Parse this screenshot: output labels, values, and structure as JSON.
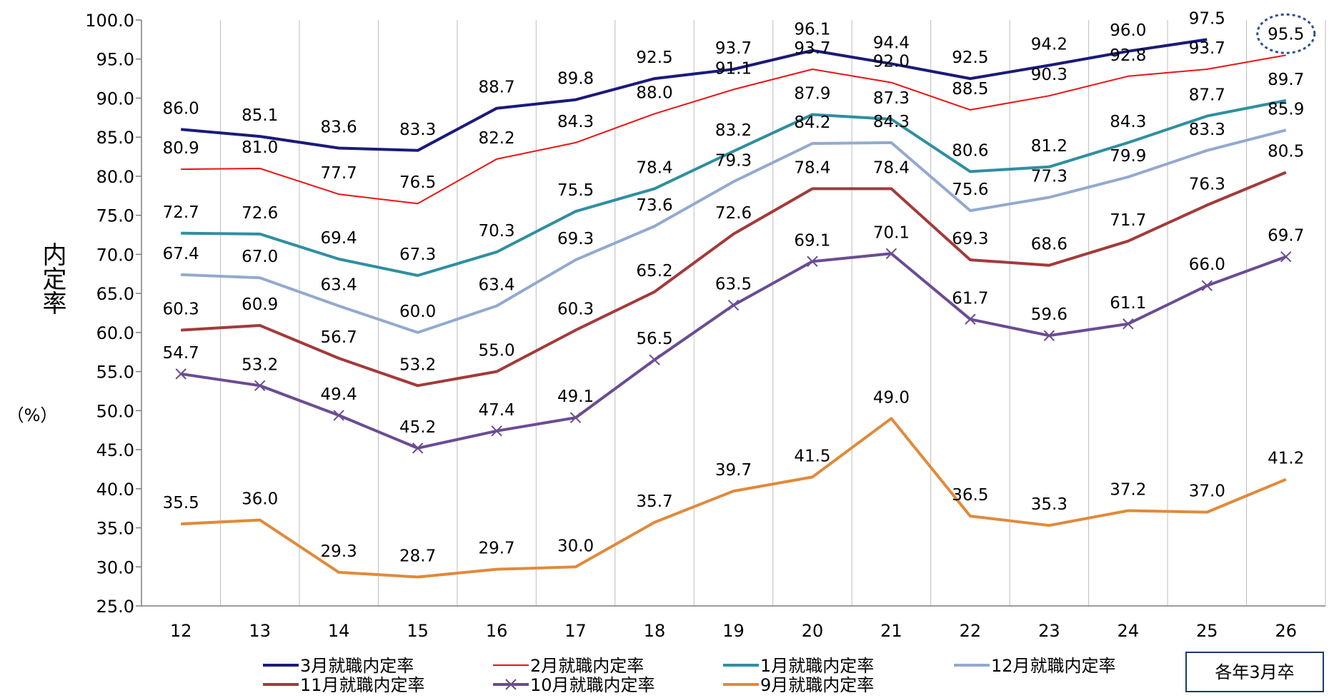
{
  "chart_data": {
    "type": "line",
    "x": [
      "12",
      "13",
      "14",
      "15",
      "16",
      "17",
      "18",
      "19",
      "20",
      "21",
      "22",
      "23",
      "24",
      "25",
      "26"
    ],
    "ylim": [
      25.0,
      100.0
    ],
    "ytick_step": 5,
    "yticks": [
      "25.0",
      "30.0",
      "35.0",
      "40.0",
      "45.0",
      "50.0",
      "55.0",
      "60.0",
      "65.0",
      "70.0",
      "75.0",
      "80.0",
      "85.0",
      "90.0",
      "95.0",
      "100.0"
    ],
    "ylabel": "内定率",
    "yunit": "（%）",
    "grid": "vertical",
    "legend_position": "bottom",
    "note": "各年3月卒",
    "highlight": {
      "series": "2月就職内定率",
      "x": "26",
      "value": 95.5
    },
    "series": [
      {
        "name": "3月就職内定率",
        "color": "#1a1a7a",
        "width": 4,
        "marker": "none",
        "values": [
          86.0,
          85.1,
          83.6,
          83.3,
          88.7,
          89.8,
          92.5,
          93.7,
          96.1,
          94.4,
          92.5,
          94.2,
          96.0,
          97.5,
          null
        ]
      },
      {
        "name": "2月就職内定率",
        "color": "#ee1111",
        "width": 2,
        "marker": "none",
        "values": [
          80.9,
          81.0,
          77.7,
          76.5,
          82.2,
          84.3,
          88.0,
          91.1,
          93.7,
          92.0,
          88.5,
          90.3,
          92.8,
          93.7,
          95.5
        ]
      },
      {
        "name": "1月就職内定率",
        "color": "#2e8fa0",
        "width": 4,
        "marker": "none",
        "values": [
          72.7,
          72.6,
          69.4,
          67.3,
          70.3,
          75.5,
          78.4,
          83.2,
          87.9,
          87.3,
          80.6,
          81.2,
          84.3,
          87.7,
          89.7
        ]
      },
      {
        "name": "12月就職内定率",
        "color": "#93a9cf",
        "width": 4,
        "marker": "none",
        "values": [
          67.4,
          67.0,
          63.4,
          60.0,
          63.4,
          69.3,
          73.6,
          79.3,
          84.2,
          84.3,
          75.6,
          77.3,
          79.9,
          83.3,
          85.9
        ]
      },
      {
        "name": "11月就職内定率",
        "color": "#a33a3a",
        "width": 4,
        "marker": "none",
        "values": [
          60.3,
          60.9,
          56.7,
          53.2,
          55.0,
          60.3,
          65.2,
          72.6,
          78.4,
          78.4,
          69.3,
          68.6,
          71.7,
          76.3,
          80.5
        ]
      },
      {
        "name": "10月就職内定率",
        "color": "#6a4c93",
        "width": 4,
        "marker": "x",
        "values": [
          54.7,
          53.2,
          49.4,
          45.2,
          47.4,
          49.1,
          56.5,
          63.5,
          69.1,
          70.1,
          61.7,
          59.6,
          61.1,
          66.0,
          69.7
        ]
      },
      {
        "name": "9月就職内定率",
        "color": "#e08a3a",
        "width": 4,
        "marker": "none",
        "values": [
          35.5,
          36.0,
          29.3,
          28.7,
          29.7,
          30.0,
          35.7,
          39.7,
          41.5,
          49.0,
          36.5,
          35.3,
          37.2,
          37.0,
          41.2
        ]
      }
    ]
  }
}
